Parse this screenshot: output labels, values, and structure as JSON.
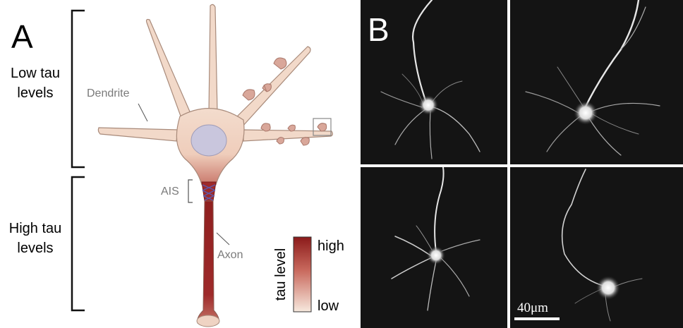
{
  "panel_a": {
    "letter": "A",
    "low_region": [
      "Low tau",
      "levels"
    ],
    "high_region": [
      "High tau",
      "levels"
    ],
    "labels": {
      "dendrite": "Dendrite",
      "ais": "AIS",
      "axon": "Axon"
    },
    "legend": {
      "title": "tau level",
      "high": "high",
      "low": "low",
      "color_high": "#8b1a1a",
      "color_low": "#f7e9de"
    },
    "colors": {
      "soma": "#f2d6c6",
      "soma_edge": "#a88a7a",
      "nucleus": "#c9c6dd",
      "spine": "#d9a79a",
      "axon": "#9a2424"
    }
  },
  "panel_b": {
    "letter": "B",
    "scale_bar": "40μm",
    "images": [
      "neuron-image-1",
      "neuron-image-2",
      "neuron-image-3",
      "neuron-image-4"
    ]
  }
}
